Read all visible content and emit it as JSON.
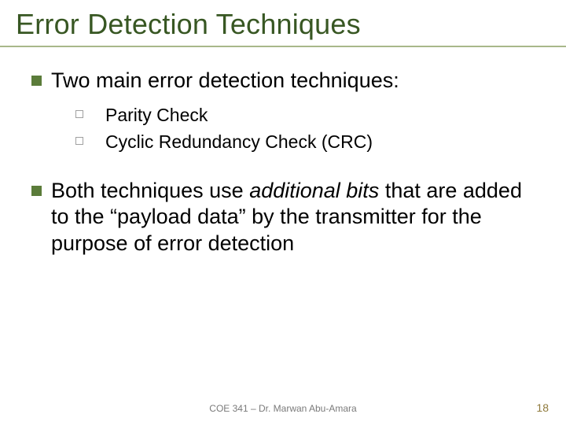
{
  "colors": {
    "title": "#385723",
    "rule": "#a8b88a",
    "bullet_l1": "#5b7c3a",
    "bullet_l2_border": "#a0a0a0",
    "body_text": "#000000",
    "italic": "#000000",
    "footer": "#7a7a7a",
    "pagenum": "#8f7a3c",
    "background": "#ffffff"
  },
  "fontsize": {
    "title": 36,
    "l1": 27,
    "l2": 23,
    "footer": 12,
    "pagenum": 14
  },
  "title": "Error Detection Techniques",
  "bullets": {
    "b1": {
      "text": "Two main error detection techniques:",
      "sub": {
        "s1": "Parity Check",
        "s2": "Cyclic Redundancy Check (CRC)"
      }
    },
    "b2": {
      "pre": "Both techniques use ",
      "em": "additional bits",
      "post": " that are added to the “payload data” by the transmitter for the purpose of error detection"
    }
  },
  "footer": "COE 341 – Dr. Marwan Abu-Amara",
  "pagenum": "18"
}
